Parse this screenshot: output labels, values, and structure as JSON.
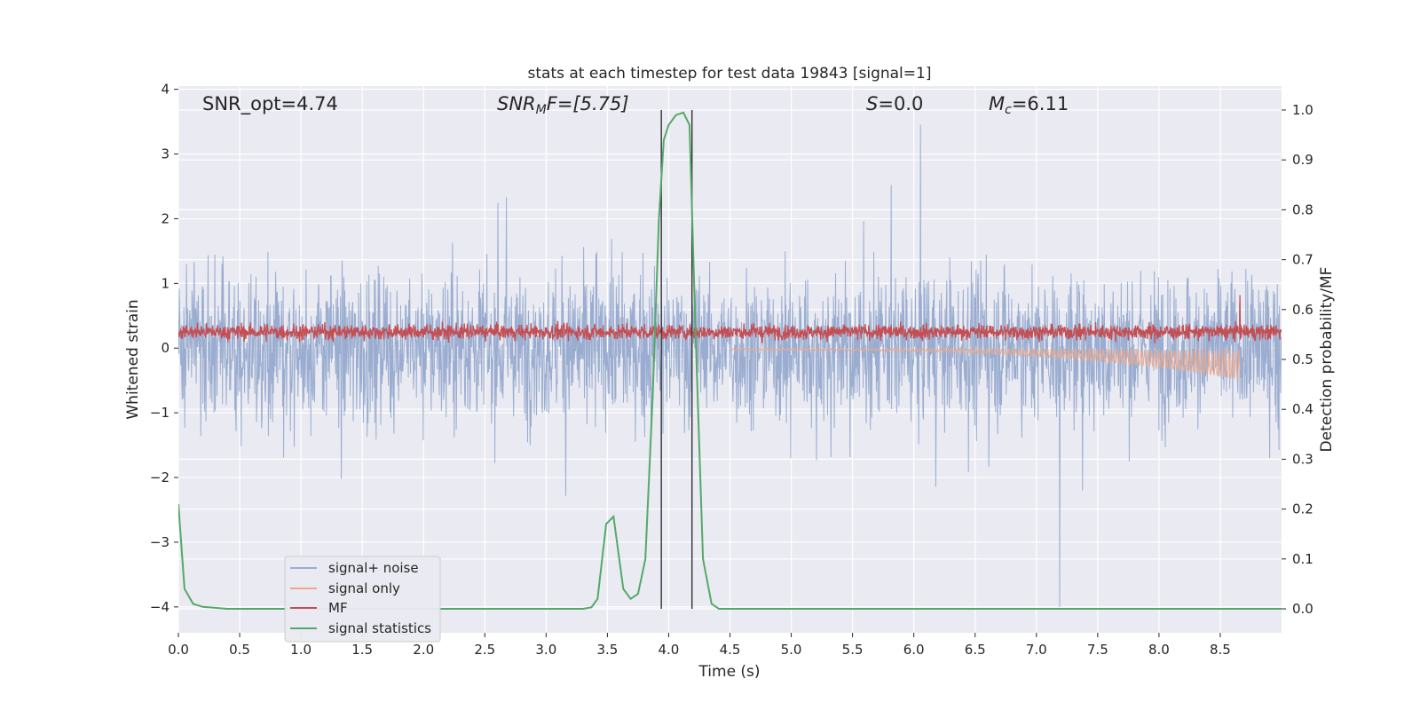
{
  "chart_data": {
    "type": "line",
    "title": "stats at each timestep for test data 19843 [signal=1]",
    "xlabel": "Time (s)",
    "ylabel": "Whitened strain",
    "ylabel_right": "Detection probability/MF",
    "xlim": [
      0.0,
      9.0
    ],
    "ylim": [
      -4.4,
      4.05
    ],
    "ylim_right": [
      -0.048,
      1.048
    ],
    "xticks": [
      "0.0",
      "0.5",
      "1.0",
      "1.5",
      "2.0",
      "2.5",
      "3.0",
      "3.5",
      "4.0",
      "4.5",
      "5.0",
      "5.5",
      "6.0",
      "6.5",
      "7.0",
      "7.5",
      "8.0",
      "8.5"
    ],
    "yticks": [
      "4",
      "3",
      "2",
      "1",
      "0",
      "−1",
      "−2",
      "−3",
      "−4"
    ],
    "yticks_right": [
      "1.0",
      "0.9",
      "0.8",
      "0.7",
      "0.6",
      "0.5",
      "0.4",
      "0.3",
      "0.2",
      "0.1",
      "0.0"
    ],
    "grid": true,
    "legend_position": "lower-left",
    "annotations": {
      "snr_opt": "SNR_opt=4.74",
      "snr_mf_label": "SNR",
      "snr_mf_sub": "M",
      "snr_mf_rest": "F=[5.75]",
      "s_label": "S",
      "s_rest": "=0.0",
      "mc_label": "M",
      "mc_sub": "c",
      "mc_rest": "=6.11"
    },
    "vertical_lines_x": [
      3.94,
      4.19
    ],
    "series": [
      {
        "name": "signal+ noise",
        "color": "#9aadd0",
        "note_envelope": {
          "upper_typical": 1.8,
          "lower_typical": -1.8,
          "peak_upper": 3.7,
          "peak_lower": -4.0,
          "peak_lower_x": 7.19
        }
      },
      {
        "name": "signal only",
        "color": "#eda98d",
        "chirp_start_x": 4.5,
        "chirp_end_x": 8.66,
        "chirp_end_amplitude": -0.5
      },
      {
        "name": "MF",
        "color": "#c44e52",
        "baseline": 0.25,
        "typical_peak": 0.55,
        "max_value": 0.82,
        "max_x": 8.66
      },
      {
        "name": "signal statistics",
        "color": "#55a868",
        "x": [
          0.0,
          0.05,
          0.12,
          0.2,
          0.4,
          3.3,
          3.37,
          3.42,
          3.49,
          3.55,
          3.63,
          3.69,
          3.75,
          3.81,
          3.87,
          3.92,
          3.96,
          4.0,
          4.06,
          4.12,
          4.17,
          4.22,
          4.28,
          4.35,
          4.41,
          4.46,
          4.5,
          9.0
        ],
        "y": [
          0.21,
          0.04,
          0.01,
          0.004,
          0.0,
          0.0,
          0.003,
          0.02,
          0.17,
          0.185,
          0.04,
          0.02,
          0.03,
          0.1,
          0.43,
          0.78,
          0.94,
          0.97,
          0.99,
          0.995,
          0.97,
          0.55,
          0.1,
          0.01,
          0.0,
          0.0,
          0.0,
          0.0
        ]
      }
    ]
  }
}
